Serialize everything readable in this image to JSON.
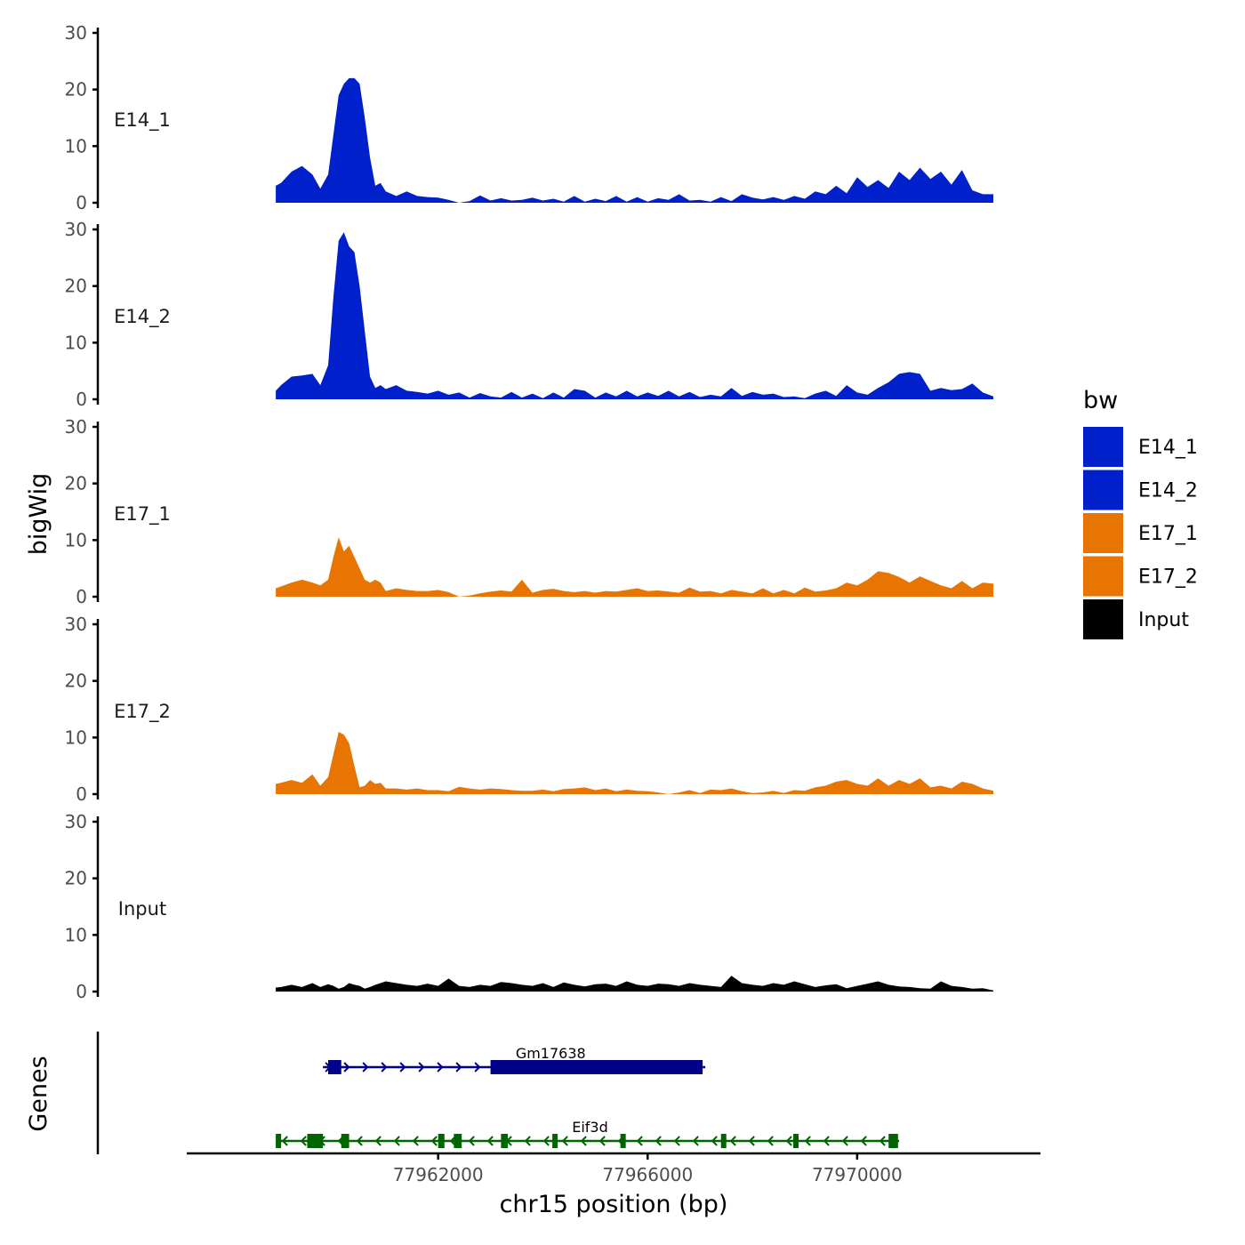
{
  "chart_data": {
    "type": "area",
    "ylabel": "bigWig",
    "xlabel": "chr15 position (bp)",
    "gene_panel_label": "Genes",
    "xlim": [
      77957200,
      77973500
    ],
    "ylim": [
      0,
      30
    ],
    "y_ticks": [
      0,
      10,
      20,
      30
    ],
    "x_ticks": [
      77962000,
      77966000,
      77970000
    ],
    "x_tick_labels": [
      "77962000",
      "77966000",
      "77970000"
    ],
    "legend": {
      "title": "bw",
      "position": "right",
      "entries": [
        {
          "label": "E14_1",
          "color": "#0020CC"
        },
        {
          "label": "E14_2",
          "color": "#0020CC"
        },
        {
          "label": "E17_1",
          "color": "#E87502"
        },
        {
          "label": "E17_2",
          "color": "#E87502"
        },
        {
          "label": "Input",
          "color": "#000000"
        }
      ]
    },
    "series": [
      {
        "name": "E14_1",
        "color": "#0020CC",
        "x": [
          77958900,
          77959000,
          77959200,
          77959400,
          77959600,
          77959750,
          77959900,
          77960000,
          77960100,
          77960200,
          77960300,
          77960400,
          77960500,
          77960600,
          77960700,
          77960800,
          77960900,
          77961000,
          77961200,
          77961400,
          77961600,
          77961800,
          77962000,
          77962200,
          77962400,
          77962600,
          77962800,
          77963000,
          77963200,
          77963400,
          77963600,
          77963800,
          77964000,
          77964200,
          77964400,
          77964600,
          77964800,
          77965000,
          77965200,
          77965400,
          77965600,
          77965800,
          77966000,
          77966200,
          77966400,
          77966600,
          77966800,
          77967000,
          77967200,
          77967400,
          77967600,
          77967800,
          77968000,
          77968200,
          77968400,
          77968600,
          77968800,
          77969000,
          77969200,
          77969400,
          77969600,
          77969800,
          77970000,
          77970200,
          77970400,
          77970600,
          77970800,
          77971000,
          77971200,
          77971400,
          77971600,
          77971800,
          77972000,
          77972200,
          77972400,
          77972600
        ],
        "values": [
          3,
          3.5,
          5.5,
          6.5,
          5,
          2.5,
          5,
          12,
          19,
          21,
          22,
          22,
          21,
          15,
          8,
          3,
          3.5,
          2,
          1.2,
          2,
          1.2,
          1,
          0.9,
          0.5,
          0,
          0.3,
          1.3,
          0.4,
          0.8,
          0.4,
          0.5,
          0.9,
          0.4,
          0.7,
          0.2,
          1.2,
          0.2,
          0.7,
          0.3,
          1.2,
          0.2,
          1.0,
          0.2,
          0.8,
          0.5,
          1.5,
          0.4,
          0.5,
          0.2,
          1.0,
          0.3,
          1.5,
          0.9,
          0.6,
          1.0,
          0.5,
          1.2,
          0.7,
          2,
          1.5,
          3,
          1.7,
          4.5,
          2.8,
          4.0,
          2.6,
          5.5,
          4.0,
          6.2,
          4.2,
          5.5,
          3.2,
          5.8,
          2.2,
          1.5,
          1.5
        ]
      },
      {
        "name": "E14_2",
        "color": "#0020CC",
        "x": [
          77958900,
          77959000,
          77959200,
          77959400,
          77959600,
          77959750,
          77959900,
          77960000,
          77960100,
          77960200,
          77960300,
          77960400,
          77960500,
          77960600,
          77960700,
          77960800,
          77960900,
          77961000,
          77961200,
          77961400,
          77961600,
          77961800,
          77962000,
          77962200,
          77962400,
          77962600,
          77962800,
          77963000,
          77963200,
          77963400,
          77963600,
          77963800,
          77964000,
          77964200,
          77964400,
          77964600,
          77964800,
          77965000,
          77965200,
          77965400,
          77965600,
          77965800,
          77966000,
          77966200,
          77966400,
          77966600,
          77966800,
          77967000,
          77967200,
          77967400,
          77967600,
          77967800,
          77968000,
          77968200,
          77968400,
          77968600,
          77968800,
          77969000,
          77969200,
          77969400,
          77969600,
          77969800,
          77970000,
          77970200,
          77970400,
          77970600,
          77970800,
          77971000,
          77971200,
          77971400,
          77971600,
          77971800,
          77972000,
          77972200,
          77972400,
          77972600
        ],
        "values": [
          1.5,
          2.5,
          4,
          4.2,
          4.5,
          2.5,
          6,
          18,
          28,
          29.5,
          27,
          26,
          20,
          12,
          4,
          2,
          2.5,
          1.8,
          2.5,
          1.5,
          1.3,
          1.0,
          1.5,
          0.8,
          1.2,
          0.3,
          1.1,
          0.5,
          0.3,
          1.3,
          0.3,
          1.0,
          0.2,
          1.2,
          0.3,
          1.8,
          1.5,
          0.3,
          1.2,
          0.5,
          1.5,
          0.5,
          1.2,
          0.6,
          1.5,
          0.5,
          1.3,
          0.4,
          0.8,
          0.5,
          2.0,
          0.6,
          1.3,
          0.8,
          1.0,
          0.4,
          0.5,
          0.2,
          1.0,
          1.5,
          0.6,
          2.5,
          1.2,
          0.8,
          2.0,
          3.0,
          4.5,
          4.8,
          4.5,
          1.5,
          2.0,
          1.6,
          1.8,
          2.8,
          1.2,
          0.5
        ]
      },
      {
        "name": "E17_1",
        "color": "#E87502",
        "x": [
          77958900,
          77959000,
          77959200,
          77959400,
          77959600,
          77959750,
          77959900,
          77960000,
          77960100,
          77960200,
          77960300,
          77960400,
          77960500,
          77960600,
          77960700,
          77960800,
          77960900,
          77961000,
          77961200,
          77961400,
          77961600,
          77961800,
          77962000,
          77962200,
          77962400,
          77962600,
          77962800,
          77963000,
          77963200,
          77963400,
          77963600,
          77963800,
          77964000,
          77964200,
          77964400,
          77964600,
          77964800,
          77965000,
          77965200,
          77965400,
          77965600,
          77965800,
          77966000,
          77966200,
          77966400,
          77966600,
          77966800,
          77967000,
          77967200,
          77967400,
          77967600,
          77967800,
          77968000,
          77968200,
          77968400,
          77968600,
          77968800,
          77969000,
          77969200,
          77969400,
          77969600,
          77969800,
          77970000,
          77970200,
          77970400,
          77970600,
          77970800,
          77971000,
          77971200,
          77971400,
          77971600,
          77971800,
          77972000,
          77972200,
          77972400,
          77972600
        ],
        "values": [
          1.5,
          1.8,
          2.5,
          3,
          2.5,
          2,
          3,
          7,
          10.5,
          8,
          9,
          7,
          5,
          3,
          2.5,
          3,
          2.5,
          1.0,
          1.5,
          1.2,
          1.0,
          1.0,
          1.2,
          0.8,
          0.0,
          0.2,
          0.6,
          0.9,
          1.1,
          0.9,
          3.0,
          0.7,
          1.2,
          1.4,
          1.0,
          0.8,
          1.0,
          0.7,
          1.0,
          0.9,
          1.2,
          1.5,
          1.0,
          1.1,
          0.9,
          0.7,
          1.6,
          0.9,
          1.0,
          0.6,
          1.2,
          0.9,
          0.6,
          1.5,
          0.6,
          1.2,
          0.6,
          1.6,
          0.9,
          1.1,
          1.5,
          2.5,
          2.0,
          3.0,
          4.5,
          4.2,
          3.5,
          2.5,
          3.6,
          2.8,
          2.0,
          1.5,
          2.8,
          1.5,
          2.5,
          2.3
        ]
      },
      {
        "name": "E17_2",
        "color": "#E87502",
        "x": [
          77958900,
          77959000,
          77959200,
          77959400,
          77959600,
          77959750,
          77959900,
          77960000,
          77960100,
          77960200,
          77960300,
          77960400,
          77960500,
          77960600,
          77960700,
          77960800,
          77960900,
          77961000,
          77961200,
          77961400,
          77961600,
          77961800,
          77962000,
          77962200,
          77962400,
          77962600,
          77962800,
          77963000,
          77963200,
          77963400,
          77963600,
          77963800,
          77964000,
          77964200,
          77964400,
          77964600,
          77964800,
          77965000,
          77965200,
          77965400,
          77965600,
          77965800,
          77966000,
          77966200,
          77966400,
          77966600,
          77966800,
          77967000,
          77967200,
          77967400,
          77967600,
          77967800,
          77968000,
          77968200,
          77968400,
          77968600,
          77968800,
          77969000,
          77969200,
          77969400,
          77969600,
          77969800,
          77970000,
          77970200,
          77970400,
          77970600,
          77970800,
          77971000,
          77971200,
          77971400,
          77971600,
          77971800,
          77972000,
          77972200,
          77972400,
          77972600
        ],
        "values": [
          1.8,
          2.0,
          2.5,
          2.0,
          3.5,
          1.5,
          3.0,
          7.0,
          11.0,
          10.5,
          9.0,
          5.0,
          1.2,
          1.5,
          2.5,
          1.8,
          2.0,
          1.0,
          1.0,
          0.8,
          1.0,
          0.7,
          0.7,
          0.5,
          1.3,
          1.0,
          0.8,
          1.0,
          0.9,
          0.7,
          0.6,
          0.6,
          0.8,
          0.5,
          0.9,
          1.0,
          1.2,
          0.7,
          1.0,
          0.5,
          0.8,
          0.6,
          0.5,
          0.3,
          0.0,
          0.3,
          0.7,
          0.2,
          0.8,
          0.7,
          1.0,
          0.5,
          0.2,
          0.3,
          0.6,
          0.2,
          0.7,
          0.6,
          1.2,
          1.5,
          2.2,
          2.5,
          1.8,
          1.5,
          2.8,
          1.5,
          2.5,
          1.8,
          2.8,
          1.2,
          1.5,
          1.0,
          2.2,
          1.8,
          1.0,
          0.6
        ]
      },
      {
        "name": "Input",
        "color": "#000000",
        "x": [
          77958900,
          77959000,
          77959200,
          77959400,
          77959600,
          77959750,
          77959900,
          77960000,
          77960100,
          77960200,
          77960300,
          77960400,
          77960500,
          77960600,
          77960700,
          77960800,
          77960900,
          77961000,
          77961200,
          77961400,
          77961600,
          77961800,
          77962000,
          77962200,
          77962400,
          77962600,
          77962800,
          77963000,
          77963200,
          77963400,
          77963600,
          77963800,
          77964000,
          77964200,
          77964400,
          77964600,
          77964800,
          77965000,
          77965200,
          77965400,
          77965600,
          77965800,
          77966000,
          77966200,
          77966400,
          77966600,
          77966800,
          77967000,
          77967200,
          77967400,
          77967600,
          77967800,
          77968000,
          77968200,
          77968400,
          77968600,
          77968800,
          77969000,
          77969200,
          77969400,
          77969600,
          77969800,
          77970000,
          77970200,
          77970400,
          77970600,
          77970800,
          77971000,
          77971200,
          77971400,
          77971600,
          77971800,
          77972000,
          77972200,
          77972400,
          77972600
        ],
        "values": [
          0.7,
          0.8,
          1.2,
          0.8,
          1.5,
          0.8,
          1.3,
          1.0,
          0.5,
          0.8,
          1.5,
          1.2,
          1.0,
          0.5,
          0.8,
          1.2,
          1.5,
          1.8,
          1.5,
          1.2,
          1.0,
          1.4,
          1.0,
          2.3,
          1.0,
          0.8,
          1.2,
          1.0,
          1.7,
          1.5,
          1.2,
          1.0,
          1.5,
          0.8,
          1.6,
          1.2,
          0.9,
          1.3,
          1.4,
          1.0,
          1.8,
          1.2,
          1.0,
          1.4,
          1.3,
          1.0,
          1.5,
          1.2,
          1.0,
          0.8,
          2.8,
          1.5,
          1.2,
          1.0,
          1.5,
          1.2,
          1.8,
          1.3,
          0.8,
          1.1,
          1.3,
          0.6,
          1.0,
          1.4,
          1.8,
          1.2,
          0.9,
          0.8,
          0.6,
          0.5,
          1.8,
          1.0,
          0.8,
          0.5,
          0.6,
          0.2
        ]
      }
    ],
    "genes": [
      {
        "name": "Gm17638",
        "color": "#000088",
        "strand": "+",
        "start": 77959800,
        "end": 77967100,
        "exons": [
          [
            77959900,
            77960150
          ],
          [
            77963000,
            77967050
          ]
        ]
      },
      {
        "name": "Eif3d",
        "color": "#006400",
        "strand": "-",
        "start": 77958900,
        "end": 77970800,
        "exons": [
          [
            77958900,
            77959000
          ],
          [
            77959500,
            77959800
          ],
          [
            77960150,
            77960300
          ],
          [
            77962000,
            77962120
          ],
          [
            77962300,
            77962450
          ],
          [
            77963200,
            77963330
          ],
          [
            77964180,
            77964280
          ],
          [
            77965480,
            77965570
          ],
          [
            77967400,
            77967500
          ],
          [
            77968780,
            77968880
          ],
          [
            77970600,
            77970780
          ]
        ]
      }
    ]
  }
}
